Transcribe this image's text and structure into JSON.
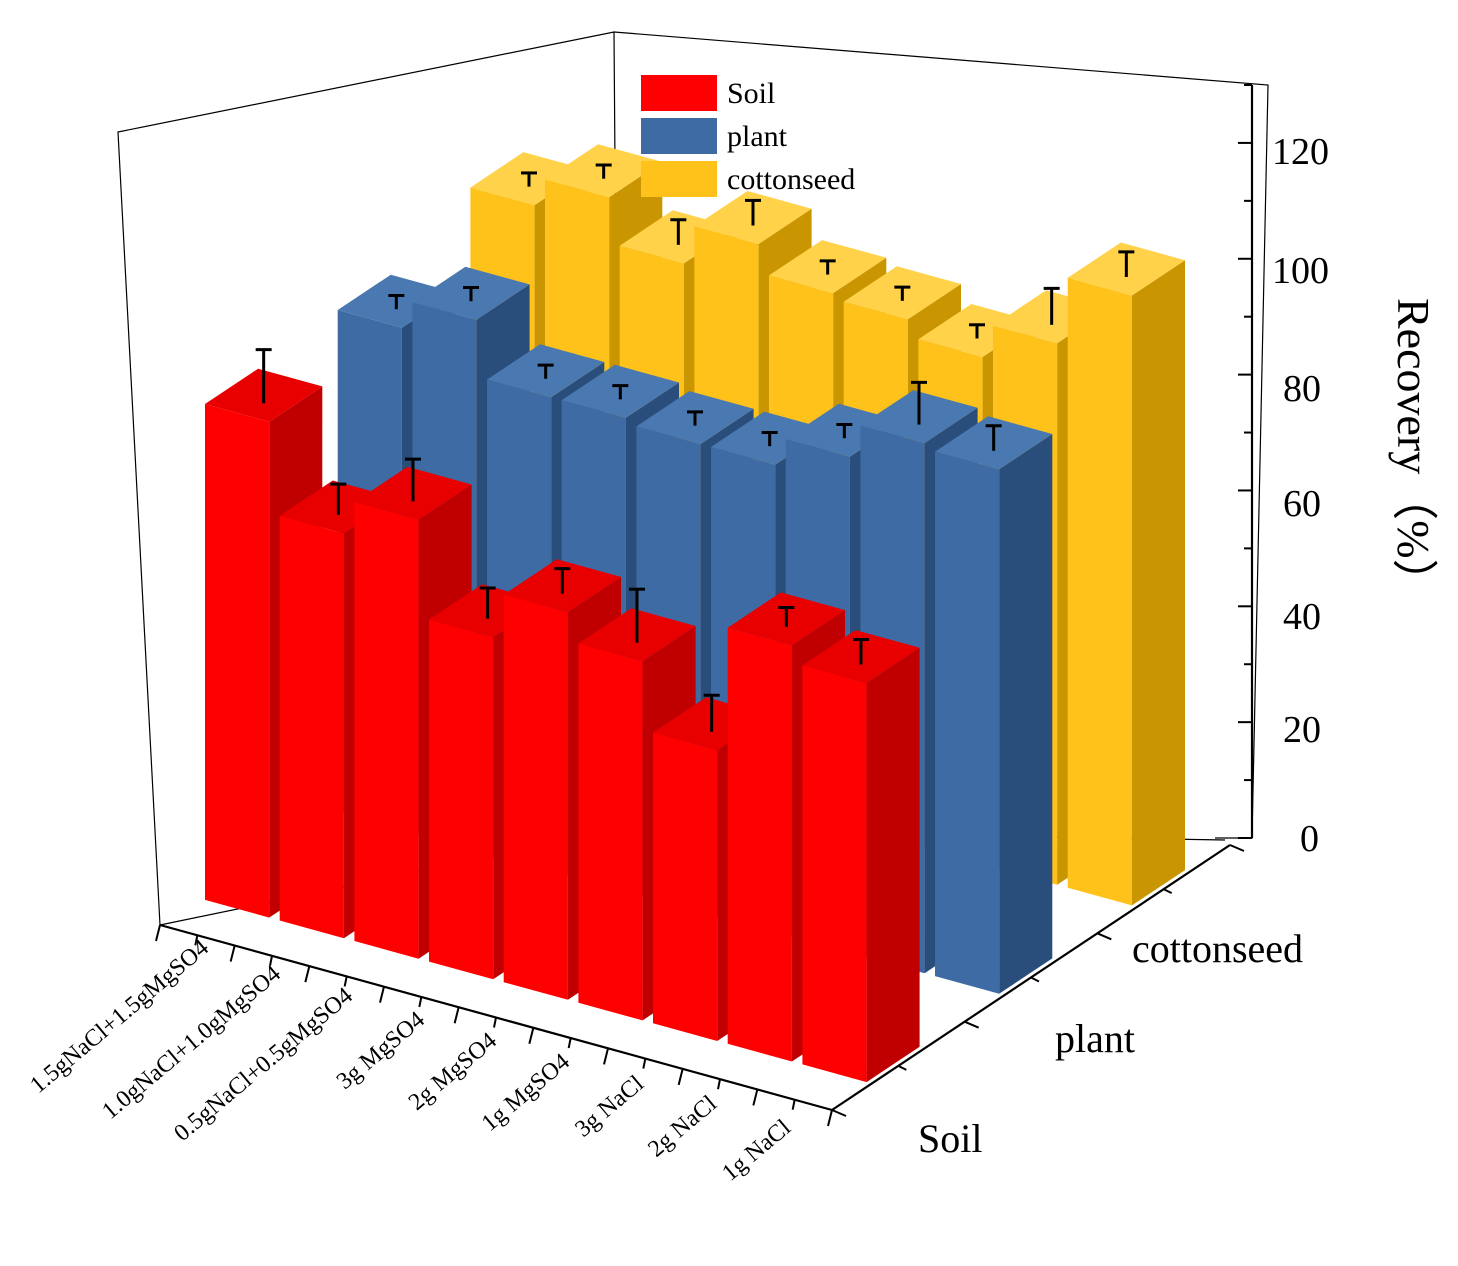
{
  "chart_data": {
    "type": "bar",
    "variant": "3d-grouped",
    "categories": [
      "1.5gNaCl+1.5gMgSO4",
      "1.0gNaCl+1.0gMgSO4",
      "0.5gNaCl+0.5gMgSO4",
      "3g MgSO4",
      "2g MgSO4",
      "1g MgSO4",
      "3g NaCl",
      "2g NaCl",
      "1g NaCl"
    ],
    "series": [
      {
        "name": "Soil",
        "color": "#ff0000",
        "side_color": "#c00000",
        "top_color": "#e80000",
        "values": [
          87,
          71,
          77,
          60,
          68,
          63,
          51,
          73,
          70
        ],
        "errors": [
          8,
          4,
          6,
          4,
          3,
          8,
          5,
          2,
          3
        ]
      },
      {
        "name": "plant",
        "color": "#3e6ba3",
        "side_color": "#2a4e7c",
        "top_color": "#4a78b0",
        "values": [
          88,
          93,
          83,
          83,
          82,
          82,
          87,
          93,
          92
        ],
        "errors": [
          1,
          1,
          1,
          1,
          1,
          1,
          1,
          6,
          3
        ]
      },
      {
        "name": "cottonseed",
        "color": "#ffc21a",
        "side_color": "#c99500",
        "top_color": "#ffd24a",
        "values": [
          94,
          99,
          91,
          98,
          93,
          92,
          89,
          95,
          107
        ],
        "errors": [
          1,
          1,
          3,
          3,
          1,
          1,
          1,
          5,
          3
        ]
      }
    ],
    "zlabel": "Recovery（%）",
    "zlim": [
      0,
      130
    ],
    "zticks": [
      0,
      20,
      40,
      60,
      80,
      100,
      120
    ],
    "legend": [
      "Soil",
      "plant",
      "cottonseed"
    ],
    "legend_position": "top"
  },
  "labels": {
    "zticks": [
      "0",
      "20",
      "40",
      "60",
      "80",
      "100",
      "120"
    ],
    "categories": [
      "1.5gNaCl+1.5gMgSO4",
      "1.0gNaCl+1.0gMgSO4",
      "0.5gNaCl+0.5gMgSO4",
      "3g MgSO4",
      "2g MgSO4",
      "1g MgSO4",
      "3g NaCl",
      "2g NaCl",
      "1g NaCl"
    ],
    "series": [
      "Soil",
      "plant",
      "cottonseed"
    ],
    "z_title": "Recovery（%）",
    "legend": [
      "Soil",
      "plant",
      "cottonseed"
    ]
  }
}
